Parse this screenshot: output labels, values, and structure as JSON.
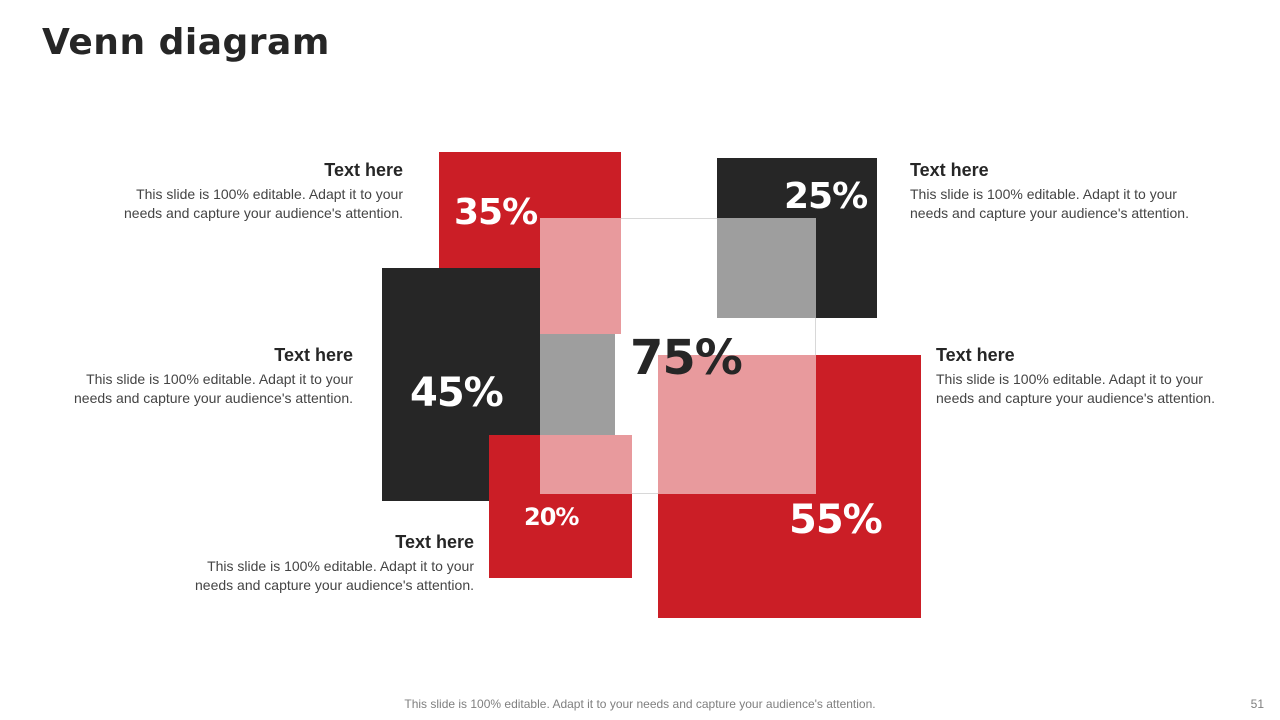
{
  "slide": {
    "title": "Venn diagram",
    "footer": "This slide is 100% editable. Adapt it to your needs and capture your audience's attention.",
    "page_number": "51"
  },
  "colors": {
    "red": "#cb1e26",
    "dark": "#262626",
    "overlap_pink": "#e89a9d",
    "overlap_grey": "#9e9e9e"
  },
  "blocks": {
    "top_left": {
      "value": "35%"
    },
    "top_right": {
      "value": "25%"
    },
    "middle_left": {
      "value": "45%"
    },
    "bottom_right": {
      "value": "55%"
    },
    "bottom_small": {
      "value": "20%"
    },
    "center": {
      "value": "75%"
    }
  },
  "labels": {
    "top_left": {
      "heading": "Text here",
      "line1": "This slide is 100% editable. Adapt it to your",
      "line2": "needs and capture your audience's attention."
    },
    "middle_left": {
      "heading": "Text here",
      "line1": "This slide is 100% editable. Adapt it to your",
      "line2": "needs and capture your audience's attention."
    },
    "bottom_left": {
      "heading": "Text here",
      "line1": "This slide is 100% editable. Adapt it to your",
      "line2": "needs and capture your audience's attention."
    },
    "top_right": {
      "heading": "Text here",
      "line1": "This slide is 100% editable. Adapt it to your",
      "line2": "needs and capture your audience's attention."
    },
    "middle_right": {
      "heading": "Text here",
      "line1": "This slide is 100% editable. Adapt it to your",
      "line2": "needs and capture your audience's attention."
    }
  }
}
